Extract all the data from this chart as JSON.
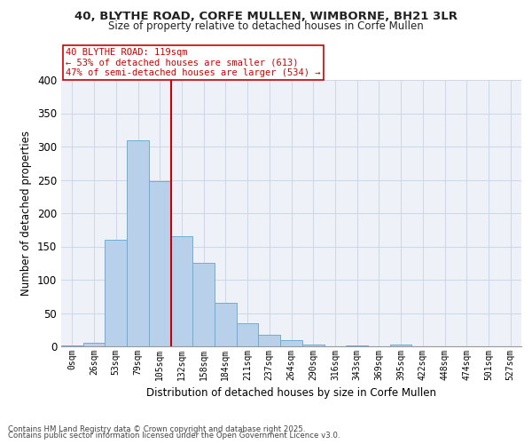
{
  "title1": "40, BLYTHE ROAD, CORFE MULLEN, WIMBORNE, BH21 3LR",
  "title2": "Size of property relative to detached houses in Corfe Mullen",
  "xlabel": "Distribution of detached houses by size in Corfe Mullen",
  "ylabel": "Number of detached properties",
  "bar_color": "#b8d0ea",
  "bar_edge_color": "#6baed6",
  "bin_labels": [
    "0sqm",
    "26sqm",
    "53sqm",
    "79sqm",
    "105sqm",
    "132sqm",
    "158sqm",
    "184sqm",
    "211sqm",
    "237sqm",
    "264sqm",
    "290sqm",
    "316sqm",
    "343sqm",
    "369sqm",
    "395sqm",
    "422sqm",
    "448sqm",
    "474sqm",
    "501sqm",
    "527sqm"
  ],
  "bar_heights": [
    2,
    5,
    160,
    310,
    248,
    165,
    125,
    65,
    35,
    18,
    10,
    3,
    0.5,
    2,
    0.5,
    3,
    0.5,
    0.5,
    0.5,
    0.5,
    0.5
  ],
  "annotation_title": "40 BLYTHE ROAD: 119sqm",
  "annotation_line2": "← 53% of detached houses are smaller (613)",
  "annotation_line3": "47% of semi-detached houses are larger (534) →",
  "vline_color": "#cc0000",
  "annotation_box_color": "#ffffff",
  "grid_color": "#d0d8e8",
  "background_color": "#eef2f8",
  "footer1": "Contains HM Land Registry data © Crown copyright and database right 2025.",
  "footer2": "Contains public sector information licensed under the Open Government Licence v3.0.",
  "ylim": [
    0,
    400
  ],
  "yticks": [
    0,
    50,
    100,
    150,
    200,
    250,
    300,
    350,
    400
  ]
}
